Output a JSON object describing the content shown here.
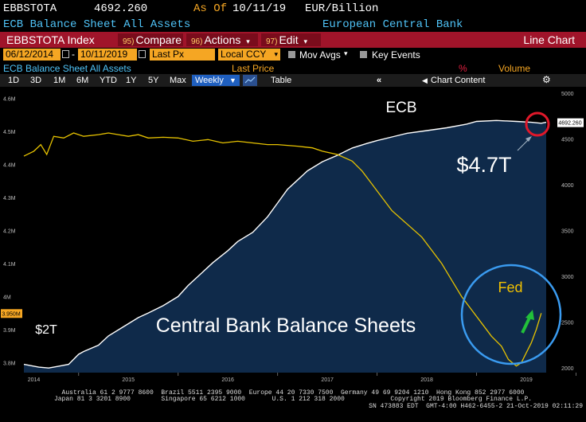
{
  "header": {
    "ticker": "EBBSTOTA",
    "price": "4692.260",
    "as_of_label": "As Of",
    "as_of_date": "10/11/19",
    "units": "EUR/Billion",
    "description": "ECB Balance Sheet All Assets",
    "source": "European Central Bank"
  },
  "menu": {
    "index": "EBBSTOTA Index",
    "compare_num": "95)",
    "compare": "Compare",
    "actions_num": "96)",
    "actions": "Actions",
    "edit_num": "97)",
    "edit": "Edit",
    "line_chart": "Line Chart"
  },
  "filters": {
    "start_date": "06/12/2014",
    "end_date": "10/11/2019",
    "price_field": "Last Px",
    "currency": "Local CCY",
    "mov_avgs": "Mov Avgs",
    "key_events": "Key Events"
  },
  "titlebar": {
    "series_title": "ECB Balance Sheet All Assets",
    "last_price": "Last Price",
    "pct": "%",
    "volume": "Volume"
  },
  "toolbar": {
    "ranges": [
      "1D",
      "3D",
      "1M",
      "6M",
      "YTD",
      "1Y",
      "5Y",
      "Max"
    ],
    "frequency": "Weekly",
    "table": "Table",
    "chart_content": "Chart Content"
  },
  "chart_data": {
    "type": "line",
    "annotations": {
      "ecb": "ECB",
      "ecb_value": "$4.7T",
      "fed": "Fed",
      "start_value": "$2T",
      "title": "Central Bank Balance Sheets",
      "last_value_tag": "4692.260",
      "left_value_tag": "3.950M"
    },
    "x_ticks": [
      "2014",
      "2015",
      "2016",
      "2017",
      "2018",
      "2019"
    ],
    "y_left_ticks": [
      "4.6M",
      "4.5M",
      "4.4M",
      "4.3M",
      "4.2M",
      "4.1M",
      "4M",
      "3.9M",
      "3.8M"
    ],
    "y_right_ticks": [
      "5000",
      "4500",
      "4000",
      "3500",
      "3000",
      "2500",
      "2000"
    ],
    "y_left_range": [
      3.77,
      4.63
    ],
    "y_right_range": [
      1950,
      5050
    ],
    "x_range": [
      2014.45,
      2019.78
    ],
    "series": [
      {
        "color": "#ffffff",
        "axis": "right",
        "points": [
          [
            2014.45,
            2040
          ],
          [
            2014.6,
            2010
          ],
          [
            2014.7,
            2000
          ],
          [
            2014.8,
            2020
          ],
          [
            2014.9,
            2040
          ],
          [
            2015.0,
            2150
          ],
          [
            2015.05,
            2180
          ],
          [
            2015.2,
            2250
          ],
          [
            2015.3,
            2350
          ],
          [
            2015.45,
            2450
          ],
          [
            2015.6,
            2550
          ],
          [
            2015.7,
            2600
          ],
          [
            2015.85,
            2680
          ],
          [
            2016.0,
            2780
          ],
          [
            2016.1,
            2900
          ],
          [
            2016.2,
            3000
          ],
          [
            2016.35,
            3150
          ],
          [
            2016.5,
            3280
          ],
          [
            2016.6,
            3380
          ],
          [
            2016.75,
            3480
          ],
          [
            2016.9,
            3650
          ],
          [
            2017.0,
            3800
          ],
          [
            2017.1,
            3950
          ],
          [
            2017.2,
            4050
          ],
          [
            2017.3,
            4150
          ],
          [
            2017.45,
            4250
          ],
          [
            2017.6,
            4320
          ],
          [
            2017.75,
            4400
          ],
          [
            2017.9,
            4450
          ],
          [
            2018.0,
            4480
          ],
          [
            2018.15,
            4520
          ],
          [
            2018.3,
            4560
          ],
          [
            2018.5,
            4590
          ],
          [
            2018.7,
            4620
          ],
          [
            2018.9,
            4660
          ],
          [
            2019.0,
            4690
          ],
          [
            2019.2,
            4700
          ],
          [
            2019.4,
            4690
          ],
          [
            2019.55,
            4680
          ],
          [
            2019.65,
            4670
          ],
          [
            2019.7,
            4680
          ]
        ]
      },
      {
        "color": "#e6c200",
        "axis": "left",
        "points": [
          [
            2014.45,
            4.425
          ],
          [
            2014.55,
            4.44
          ],
          [
            2014.62,
            4.46
          ],
          [
            2014.68,
            4.43
          ],
          [
            2014.75,
            4.485
          ],
          [
            2014.85,
            4.48
          ],
          [
            2014.95,
            4.495
          ],
          [
            2015.05,
            4.485
          ],
          [
            2015.2,
            4.49
          ],
          [
            2015.3,
            4.495
          ],
          [
            2015.4,
            4.49
          ],
          [
            2015.5,
            4.485
          ],
          [
            2015.6,
            4.49
          ],
          [
            2015.7,
            4.48
          ],
          [
            2015.85,
            4.482
          ],
          [
            2016.0,
            4.48
          ],
          [
            2016.15,
            4.47
          ],
          [
            2016.3,
            4.475
          ],
          [
            2016.45,
            4.465
          ],
          [
            2016.6,
            4.47
          ],
          [
            2016.75,
            4.465
          ],
          [
            2016.9,
            4.46
          ],
          [
            2017.0,
            4.46
          ],
          [
            2017.2,
            4.455
          ],
          [
            2017.35,
            4.45
          ],
          [
            2017.45,
            4.44
          ],
          [
            2017.6,
            4.43
          ],
          [
            2017.75,
            4.41
          ],
          [
            2017.85,
            4.38
          ],
          [
            2017.95,
            4.34
          ],
          [
            2018.05,
            4.3
          ],
          [
            2018.15,
            4.26
          ],
          [
            2018.3,
            4.22
          ],
          [
            2018.45,
            4.18
          ],
          [
            2018.55,
            4.14
          ],
          [
            2018.65,
            4.1
          ],
          [
            2018.75,
            4.05
          ],
          [
            2018.85,
            4.0
          ],
          [
            2018.95,
            3.96
          ],
          [
            2019.05,
            3.92
          ],
          [
            2019.15,
            3.88
          ],
          [
            2019.25,
            3.85
          ],
          [
            2019.32,
            3.81
          ],
          [
            2019.4,
            3.79
          ],
          [
            2019.45,
            3.8
          ],
          [
            2019.5,
            3.83
          ],
          [
            2019.55,
            3.86
          ],
          [
            2019.6,
            3.9
          ],
          [
            2019.65,
            3.95
          ]
        ]
      }
    ]
  },
  "footer": {
    "line1": "Australia 61 2 9777 8600  Brazil 5511 2395 9000  Europe 44 20 7330 7500  Germany 49 69 9204 1210  Hong Kong 852 2977 6000",
    "line2": "Japan 81 3 3201 8900        Singapore 65 6212 1000       U.S. 1 212 318 2000            Copyright 2019 Bloomberg Finance L.P.",
    "line3": "SN 473883 EDT  GMT-4:00 H462-6455-2 21-Oct-2019 02:11:29"
  }
}
